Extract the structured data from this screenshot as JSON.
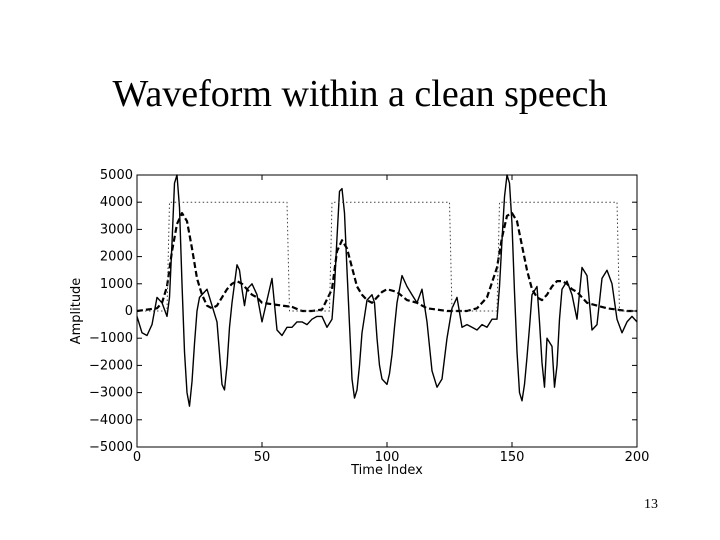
{
  "slide": {
    "title": "Waveform within a clean speech",
    "page_number": "13"
  },
  "chart_data": {
    "type": "line",
    "xlabel": "Time Index",
    "ylabel": "Amplitude",
    "xlim": [
      0,
      200
    ],
    "ylim": [
      -5000,
      5000
    ],
    "xticks": [
      0,
      50,
      100,
      150,
      200
    ],
    "yticks": [
      -5000,
      -4000,
      -3000,
      -2000,
      -1000,
      0,
      1000,
      2000,
      3000,
      4000,
      5000
    ],
    "grid": false,
    "legend": "none",
    "series": [
      {
        "style": "solid",
        "color": "#000000",
        "x": [
          0,
          2,
          4,
          6,
          8,
          10,
          12,
          13,
          14,
          15,
          16,
          17,
          18,
          19,
          20,
          21,
          22,
          23,
          24,
          25,
          26,
          27,
          28,
          30,
          32,
          34,
          35,
          36,
          37,
          38,
          40,
          41,
          42,
          43,
          44,
          46,
          48,
          50,
          52,
          54,
          56,
          58,
          60,
          62,
          64,
          66,
          68,
          70,
          72,
          74,
          76,
          78,
          79,
          80,
          81,
          82,
          83,
          84,
          85,
          86,
          87,
          88,
          89,
          90,
          92,
          94,
          95,
          96,
          97,
          98,
          100,
          101,
          102,
          103,
          104,
          106,
          108,
          110,
          112,
          114,
          116,
          118,
          120,
          122,
          124,
          126,
          128,
          130,
          132,
          134,
          136,
          138,
          140,
          142,
          144,
          145,
          146,
          147,
          148,
          149,
          150,
          151,
          152,
          153,
          154,
          155,
          156,
          157,
          158,
          160,
          161,
          162,
          163,
          164,
          166,
          167,
          168,
          169,
          170,
          172,
          174,
          176,
          178,
          180,
          182,
          184,
          186,
          188,
          190,
          192,
          194,
          196,
          198,
          200
        ],
        "values": [
          -200,
          -800,
          -900,
          -500,
          500,
          300,
          -200,
          500,
          2500,
          4700,
          5000,
          3800,
          1000,
          -1500,
          -3000,
          -3500,
          -2600,
          -1200,
          0,
          500,
          600,
          700,
          800,
          200,
          -400,
          -2700,
          -2900,
          -2000,
          -600,
          300,
          1700,
          1500,
          800,
          200,
          800,
          1000,
          600,
          -400,
          400,
          1200,
          -700,
          -900,
          -600,
          -600,
          -400,
          -400,
          -500,
          -300,
          -200,
          -200,
          -600,
          -300,
          900,
          2700,
          4400,
          4500,
          3600,
          1500,
          -500,
          -2500,
          -3200,
          -2900,
          -2000,
          -800,
          400,
          600,
          300,
          -1000,
          -2000,
          -2500,
          -2700,
          -2300,
          -1600,
          -600,
          300,
          1300,
          900,
          600,
          300,
          800,
          -400,
          -2200,
          -2800,
          -2500,
          -1000,
          100,
          500,
          -600,
          -500,
          -600,
          -700,
          -500,
          -600,
          -300,
          -300,
          900,
          2600,
          4200,
          5000,
          4700,
          3200,
          700,
          -1500,
          -3000,
          -3300,
          -2700,
          -1700,
          -600,
          600,
          900,
          -400,
          -1900,
          -2800,
          -1000,
          -1300,
          -2800,
          -2000,
          -300,
          800,
          1100,
          600,
          -300,
          1600,
          1300,
          -700,
          -500,
          1200,
          1500,
          1000,
          -300,
          -800,
          -400,
          -200,
          -400
        ]
      },
      {
        "style": "dashed",
        "color": "#000000",
        "x": [
          0,
          4,
          8,
          10,
          12,
          14,
          16,
          18,
          20,
          22,
          24,
          26,
          28,
          30,
          32,
          34,
          36,
          38,
          40,
          42,
          44,
          46,
          48,
          50,
          54,
          58,
          62,
          66,
          70,
          74,
          78,
          80,
          82,
          84,
          86,
          88,
          90,
          92,
          94,
          96,
          98,
          100,
          104,
          108,
          112,
          116,
          120,
          124,
          128,
          132,
          136,
          140,
          144,
          146,
          148,
          150,
          152,
          154,
          156,
          158,
          160,
          162,
          164,
          166,
          168,
          170,
          172,
          174,
          176,
          178,
          180,
          184,
          188,
          192,
          196,
          200
        ],
        "values": [
          0,
          50,
          100,
          300,
          900,
          2200,
          3200,
          3600,
          3300,
          2300,
          1200,
          600,
          200,
          100,
          200,
          500,
          800,
          1000,
          1100,
          1000,
          800,
          600,
          500,
          300,
          250,
          200,
          150,
          0,
          0,
          50,
          800,
          2200,
          2600,
          2300,
          1600,
          900,
          600,
          400,
          300,
          500,
          700,
          800,
          700,
          400,
          300,
          100,
          50,
          0,
          0,
          0,
          100,
          500,
          1600,
          2700,
          3500,
          3600,
          3300,
          2400,
          1500,
          800,
          500,
          400,
          600,
          900,
          1100,
          1100,
          1000,
          800,
          700,
          500,
          300,
          200,
          100,
          50,
          0,
          0
        ]
      },
      {
        "style": "dotted",
        "color": "#444444",
        "x": [
          0,
          12,
          13,
          60,
          61,
          77,
          78,
          125,
          126,
          144,
          145,
          192,
          193,
          200
        ],
        "values": [
          0,
          0,
          4000,
          4000,
          0,
          0,
          4000,
          4000,
          0,
          0,
          4000,
          4000,
          0,
          0
        ]
      }
    ]
  }
}
